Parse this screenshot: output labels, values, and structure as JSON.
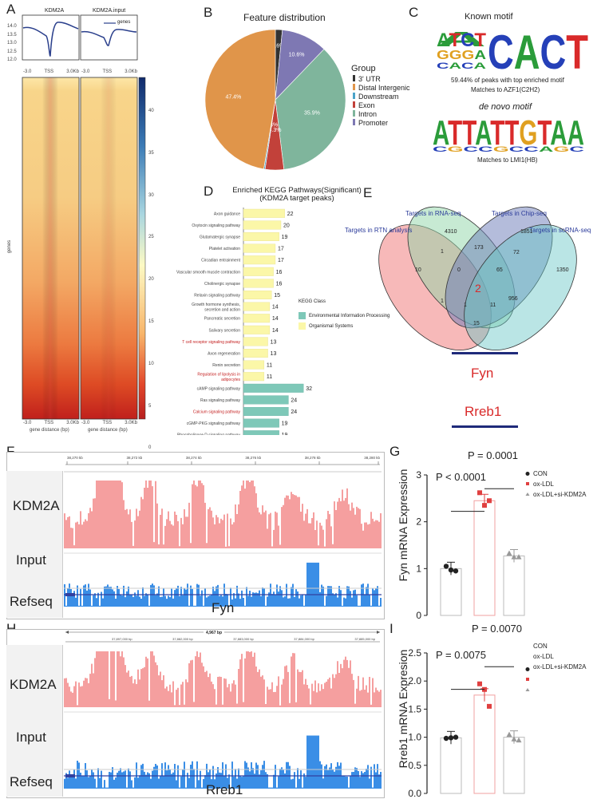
{
  "panels": {
    "A": "A",
    "B": "B",
    "C": "C",
    "D": "D",
    "E": "E",
    "F": "F",
    "G": "G",
    "H": "H",
    "I": "I"
  },
  "panelA": {
    "profile_titles": [
      "KDM2A",
      "KDM2A.input"
    ],
    "legend": "genes",
    "y_ticks": [
      "14.0",
      "13.5",
      "13.0",
      "12.5",
      "12.0"
    ],
    "x_ticks": [
      "-3.0",
      "TSS",
      "3.0Kb"
    ],
    "heatmap_ylabel": "genes",
    "colorbar_ticks": [
      "40",
      "35",
      "30",
      "25",
      "20",
      "15",
      "10",
      "5",
      "0"
    ],
    "xlabel": "gene distance (bp)"
  },
  "panelB": {
    "title": "Feature distribution",
    "legend_title": "Group",
    "legend": [
      {
        "label": "3' UTR",
        "color": "#333333"
      },
      {
        "label": "Distal Intergenic",
        "color": "#e0954a"
      },
      {
        "label": "Downstream",
        "color": "#4aa3c9"
      },
      {
        "label": "Exon",
        "color": "#c2413a"
      },
      {
        "label": "Intron",
        "color": "#7fb59c"
      },
      {
        "label": "Promoter",
        "color": "#7e78b3"
      }
    ],
    "chart_data": {
      "type": "pie",
      "labels": [
        "3' UTR",
        "Promoter",
        "Intron",
        "Exon",
        "Downstream",
        "Distal Intergenic"
      ],
      "values": [
        1.6,
        10.6,
        35.9,
        4.3,
        0.3,
        47.4
      ],
      "display": [
        "1.6%",
        "10.6%",
        "35.9%",
        "4.3%",
        "0.3%",
        "47.4%"
      ]
    }
  },
  "panelC": {
    "known_title": "Known motif",
    "known_logo": "ATCTCACT",
    "known_caption1": "59.44% of peaks with top enriched motif",
    "known_caption2": "Matches to AZF1(C2H2)",
    "denovo_title": "de novo motif",
    "denovo_logo": "ATTATTGTAA",
    "denovo_caption": "Matches to LMI1(HB)"
  },
  "panelD": {
    "title1": "Enriched KEGG Pathways(Significant)",
    "title2": "(KDM2A target peaks)",
    "xlabel": "Gene Count",
    "x_ticks": [
      "0",
      "10",
      "20",
      "30"
    ],
    "legend_title": "KEGG Class",
    "legend": [
      {
        "label": "Environmental Information Processing",
        "color": "#7ec8b8"
      },
      {
        "label": "Organismal Systems",
        "color": "#fbf7a8"
      }
    ],
    "chart_data": {
      "type": "bar",
      "categories": [
        "Axon guidance",
        "Oxytocin signaling pathway",
        "Glutamatergic synapse",
        "Platelet activation",
        "Circadian entrainment",
        "Vascular smooth muscle contraction",
        "Cholinergic synapse",
        "Relaxin signaling pathway",
        "Growth hormone synthesis, secretion and action",
        "Pancreatic secretion",
        "Salivary secretion",
        "T cell receptor signaling pathway",
        "Axon regeneration",
        "Renin secretion",
        "Regulation of lipolysis in adipocytes",
        "cAMP signaling pathway",
        "Ras signaling pathway",
        "Calcium signaling pathway",
        "cGMP-PKG signaling pathway",
        "Phospholipase D signaling pathway"
      ],
      "values": [
        22,
        20,
        19,
        17,
        17,
        16,
        16,
        15,
        14,
        14,
        14,
        13,
        13,
        11,
        11,
        32,
        24,
        24,
        19,
        19
      ],
      "classes": [
        "O",
        "O",
        "O",
        "O",
        "O",
        "O",
        "O",
        "O",
        "O",
        "O",
        "O",
        "O",
        "O",
        "O",
        "O",
        "E",
        "E",
        "E",
        "E",
        "E"
      ],
      "highlight": [
        false,
        false,
        false,
        false,
        false,
        false,
        false,
        false,
        false,
        false,
        false,
        true,
        false,
        false,
        true,
        false,
        false,
        true,
        false,
        false
      ],
      "xlim": [
        0,
        35
      ]
    }
  },
  "panelE": {
    "labels": [
      "Targets in RNA-seq",
      "Targets in Chip-seq",
      "Targets in RTN analysis",
      "Targets in scRNA-seq"
    ],
    "numbers": {
      "n4310": "4310",
      "n1851": "1851",
      "n10": "10",
      "n1350": "1350",
      "n1a": "1",
      "n173": "173",
      "n72": "72",
      "n0": "0",
      "n65": "65",
      "n2": "2",
      "n1b": "1",
      "n1c": "1",
      "n11": "11",
      "n956": "956",
      "n15": "15"
    },
    "gene1": "Fyn",
    "gene2": "Rreb1"
  },
  "panelF": {
    "coords": [
      "38,270 kb",
      "38,272 kb",
      "38,274 kb",
      "38,276 kb",
      "38,278 kb",
      "38,280 kb"
    ],
    "track1": "KDM2A",
    "track2": "Input",
    "track3": "Refseq",
    "gene": "Fyn"
  },
  "panelH": {
    "span": "4,967 bp",
    "coords": [
      "37,897,000 bp",
      "37,882,000 bp",
      "37,883,000 bp",
      "37,884,000 bp",
      "37,885,000 bp"
    ],
    "track1": "KDM2A",
    "track2": "Input",
    "track3": "Refseq",
    "gene": "Rreb1"
  },
  "panelG": {
    "ylabel": "Fyn mRNA Expression",
    "p1": "P < 0.0001",
    "p2": "P = 0.0001",
    "legend": [
      {
        "label": "CON"
      },
      {
        "label": "ox-LDL"
      },
      {
        "label": "ox-LDL+si-KDM2A"
      }
    ],
    "chart_data": {
      "type": "bar",
      "categories": [
        "CON",
        "ox-LDL",
        "ox-LDL+si-KDM2A"
      ],
      "values": [
        1.0,
        2.45,
        1.27
      ],
      "points": [
        [
          1.05,
          0.97,
          0.95
        ],
        [
          2.62,
          2.35,
          2.45
        ],
        [
          1.33,
          1.25,
          1.25
        ]
      ],
      "ylim": [
        0,
        3
      ],
      "y_ticks": [
        "0",
        "1",
        "2",
        "3"
      ]
    }
  },
  "panelI": {
    "ylabel": "Rreb1 mRNA Expresion",
    "p1": "P = 0.0075",
    "p2": "P = 0.0070",
    "legend": [
      {
        "label": "CON"
      },
      {
        "label": "ox-LDL"
      },
      {
        "label": "ox-LDL+si-KDM2A"
      }
    ],
    "chart_data": {
      "type": "bar",
      "categories": [
        "CON",
        "ox-LDL",
        "ox-LDL+si-KDM2A"
      ],
      "values": [
        0.99,
        1.75,
        1.0
      ],
      "points": [
        [
          0.98,
          0.99,
          1.0
        ],
        [
          1.95,
          1.85,
          1.55
        ],
        [
          1.05,
          0.97,
          0.95
        ]
      ],
      "ylim": [
        0,
        2.5
      ],
      "y_ticks": [
        "0.0",
        "0.5",
        "1.0",
        "1.5",
        "2.0",
        "2.5"
      ]
    }
  },
  "colors": {
    "pink": "#f59f9f",
    "blue": "#3a8ee6",
    "red": "#d93030",
    "teal": "#7ec8b8",
    "yellow": "#fbf7a8"
  }
}
